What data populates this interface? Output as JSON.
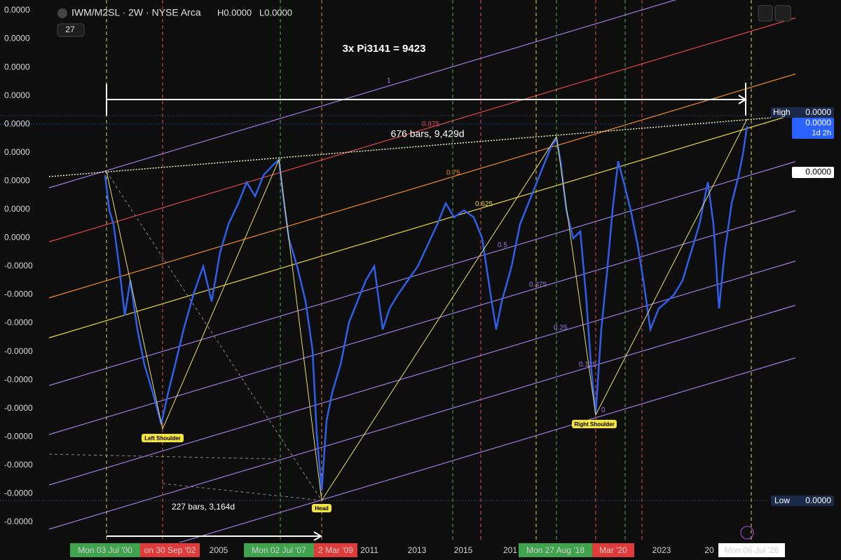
{
  "header": {
    "symbol": "IWM/M2SL · 2W · NYSE Arca",
    "high": "H0.0000",
    "low": "L0.0000",
    "indicator_count": "27"
  },
  "price_axis": {
    "labels": [
      "0.0000",
      "0.0000",
      "0.0000",
      "0.0000",
      "0.0000",
      "0.0000",
      "0.0000",
      "0.0000",
      "0.0000",
      "-0.0000",
      "-0.0000",
      "-0.0000",
      "-0.0000",
      "-0.0000",
      "-0.0000",
      "-0.0000",
      "-0.0000",
      "-0.0000",
      "-0.0000"
    ],
    "high_tag": "High",
    "high_value": "0.0000",
    "current_value": "0.0000",
    "countdown": "1d 2h",
    "marker_value": "0.0000",
    "low_tag": "Low",
    "low_value": "0.0000"
  },
  "time_axis": {
    "labels": [
      "Mon 03 Jul '00",
      "on 30 Sep '02",
      "2005",
      "Mon 02 Jul '07",
      "2 Mar '09",
      "2011",
      "2013",
      "2015",
      "201",
      "Mon 27 Aug '18",
      "Mar '20",
      "2023",
      "20",
      "Mon 06 Jul '26"
    ]
  },
  "annotations": {
    "title": "3x Pi3141 = 9423",
    "range_top": "676 bars, 9,429d",
    "range_bottom": "227 bars, 3,164d",
    "left_shoulder": "Left Shoulder",
    "head": "Head",
    "right_shoulder": "Right Shoulder"
  },
  "fib_levels": [
    "1",
    "0.875",
    "0.75",
    "0.625",
    "0.5",
    "0.375",
    "0.25",
    "0.125",
    "0"
  ]
}
